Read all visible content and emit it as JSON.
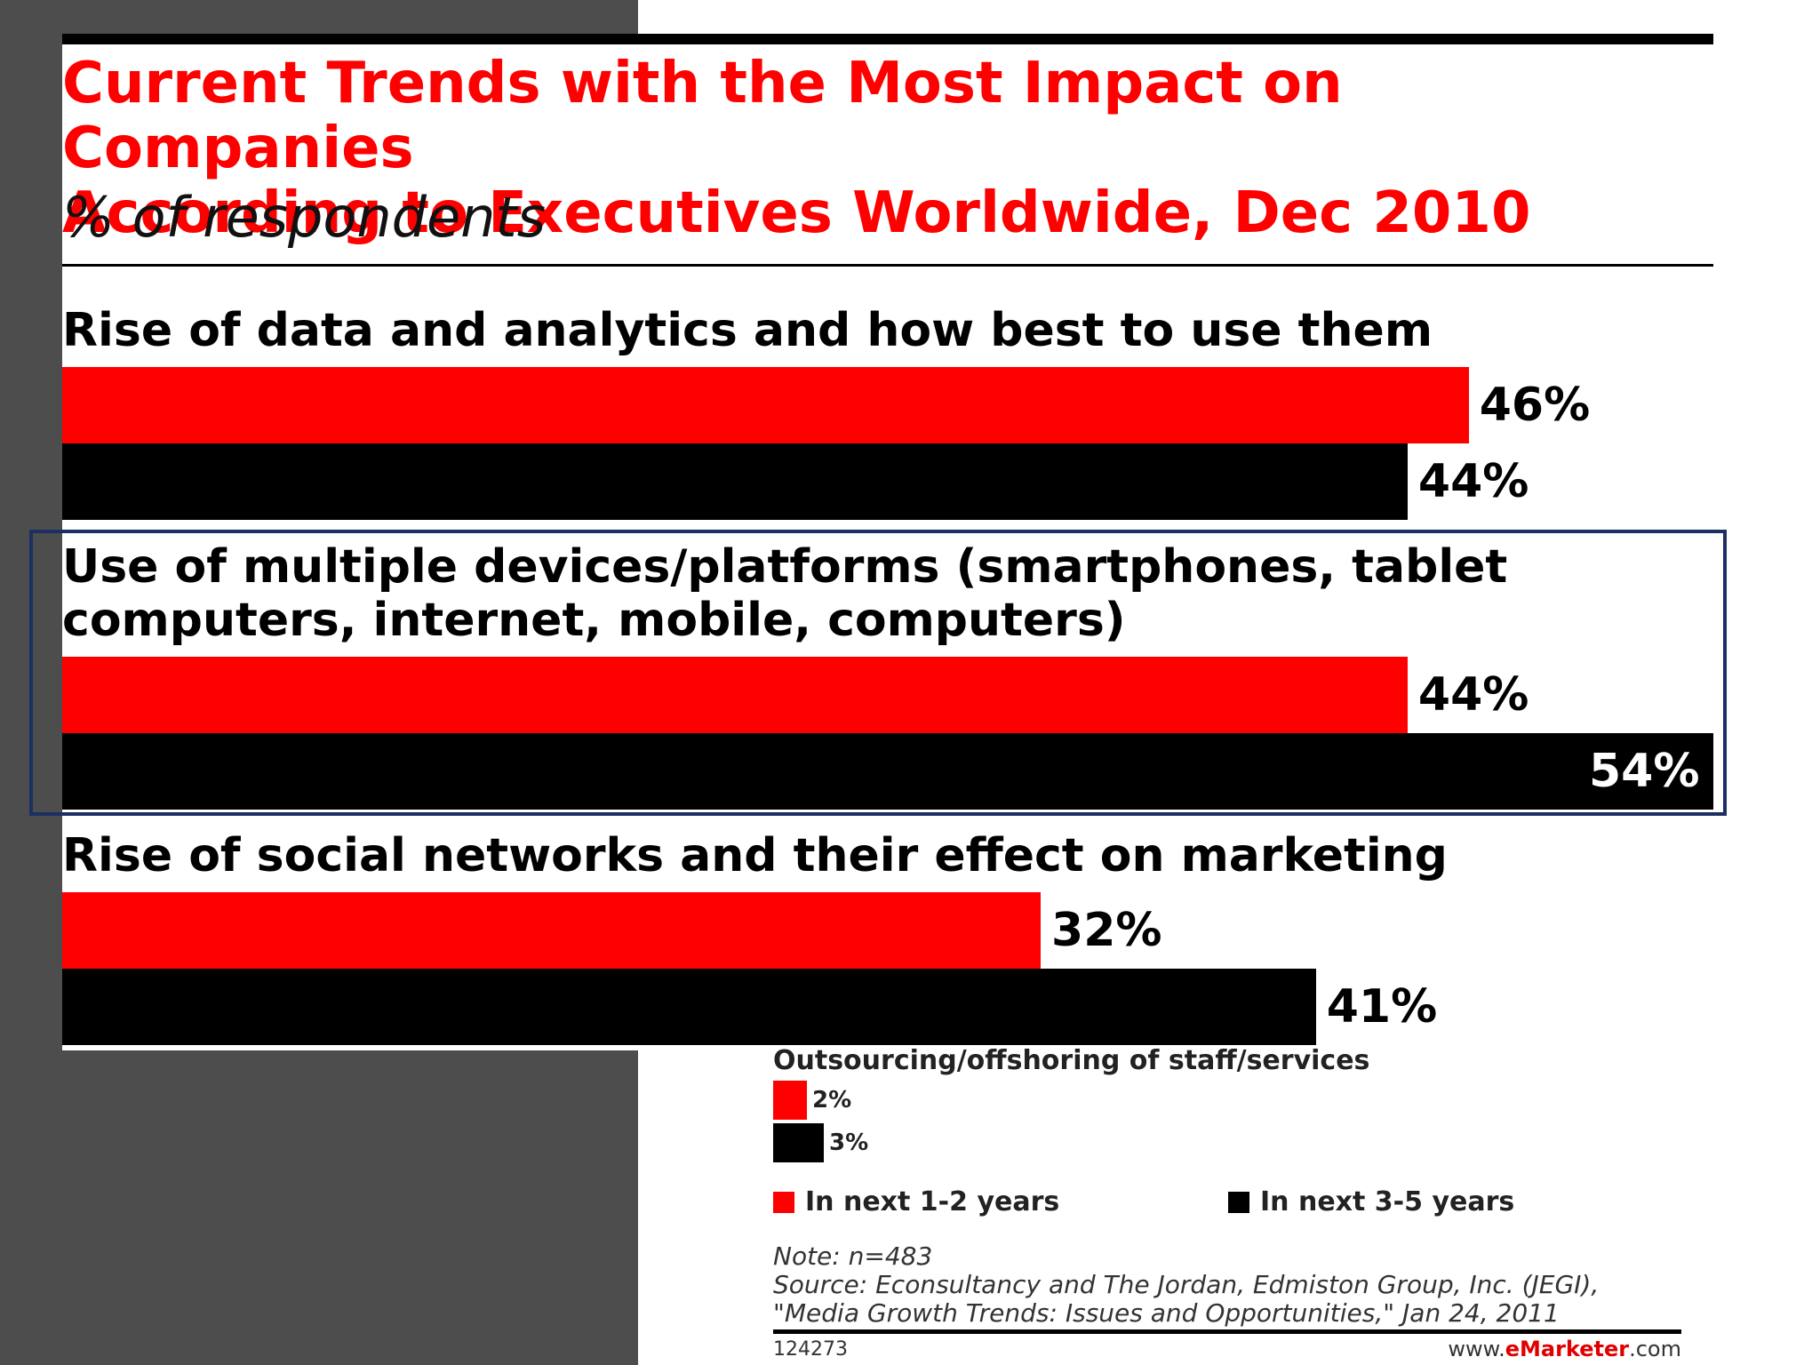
{
  "chart_data": {
    "type": "bar",
    "orientation": "horizontal",
    "title": "Current Trends with the Most Impact on Companies\nAccording to Executives Worldwide, Dec 2010",
    "subtitle": "% of respondents",
    "unit": "%",
    "categories": [
      "Rise of data and analytics and how best to use them",
      "Use of multiple devices/platforms (smartphones, tablet computers, internet, mobile, computers)",
      "Rise of social networks and their effect on marketing",
      "Outsourcing/offshoring of staff/services"
    ],
    "series": [
      {
        "name": "In next 1-2 years",
        "values": [
          46,
          44,
          32,
          2
        ],
        "labels": [
          "46%",
          "44%",
          "32%",
          "2%"
        ],
        "color": "#ff0000"
      },
      {
        "name": "In next 3-5 years",
        "values": [
          44,
          54,
          41,
          3
        ],
        "labels": [
          "44%",
          "54%",
          "41%",
          "3%"
        ],
        "color": "#000000"
      }
    ],
    "xlim": [
      0,
      54
    ],
    "grid": false,
    "legend_position": "bottom",
    "highlighted_category": "Use of multiple devices/platforms (smartphones, tablet computers, internet, mobile, computers)"
  },
  "notes": {
    "note": "Note: n=483",
    "source": "Source: Econsultancy and The Jordan, Edmiston Group, Inc. (JEGI), \"Media Growth Trends: Issues and Opportunities,\" Jan 24, 2011"
  },
  "footer": {
    "chart_id": "124273",
    "site_prefix": "www.",
    "site_brand": "eMarketer",
    "site_suffix": ".com"
  }
}
